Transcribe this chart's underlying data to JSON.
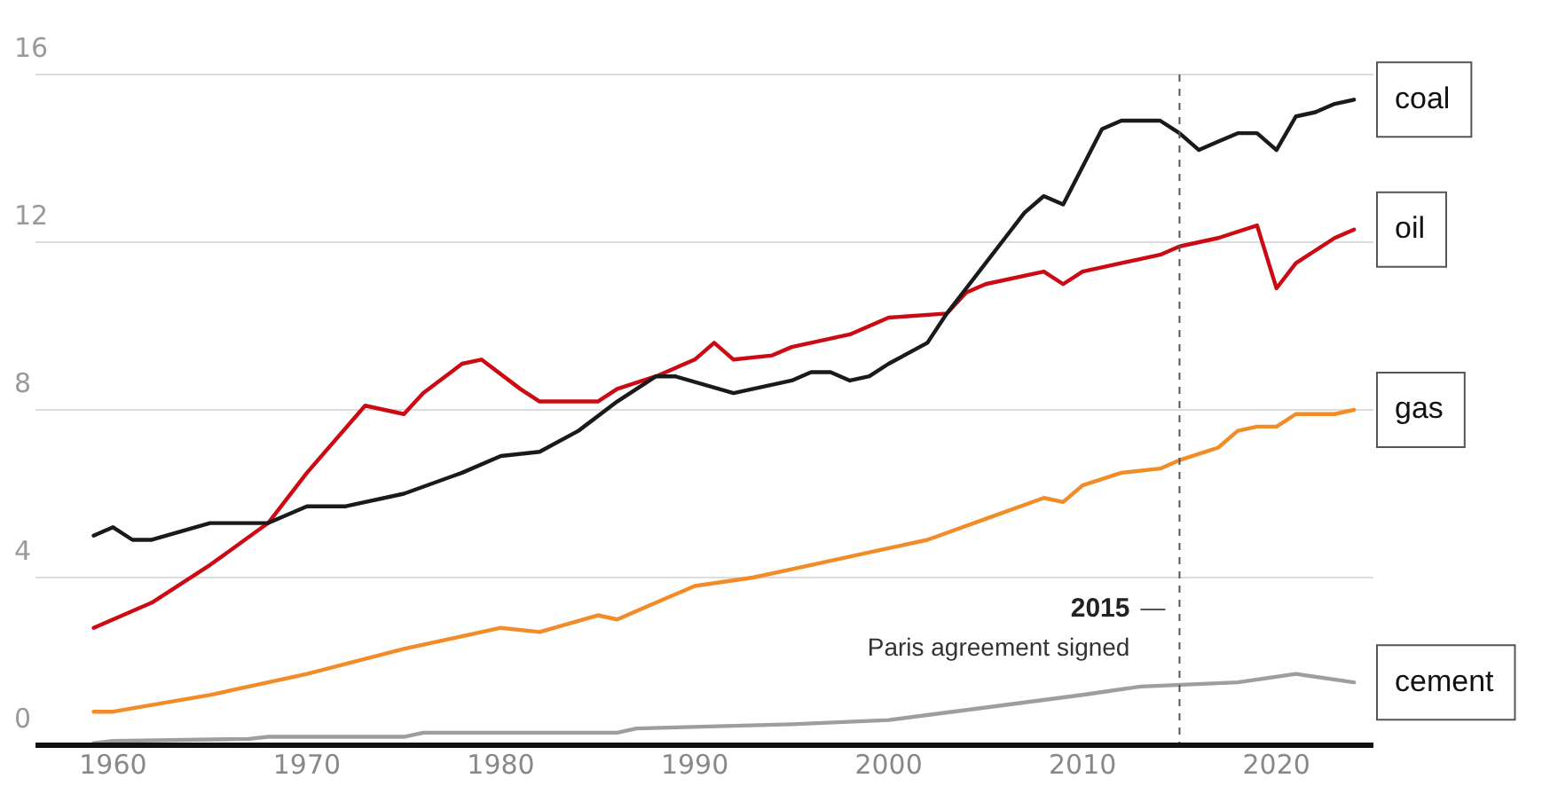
{
  "chart_data": {
    "type": "line",
    "xlim": [
      1956,
      2025
    ],
    "xticks": [
      1960,
      1970,
      1980,
      1990,
      2000,
      2010,
      2020
    ],
    "ylim": [
      0,
      16
    ],
    "yticks": [
      0,
      4,
      8,
      12,
      16
    ],
    "grid": "y",
    "legend": false,
    "marker": "none",
    "line_style": "solid",
    "series": [
      {
        "name": "coal",
        "color": "#1a1a1a",
        "x": [
          1959,
          1960,
          1961,
          1962,
          1965,
          1968,
          1970,
          1972,
          1975,
          1978,
          1980,
          1982,
          1984,
          1986,
          1988,
          1989,
          1992,
          1995,
          1996,
          1997,
          1998,
          1999,
          2000,
          2002,
          2003,
          2004,
          2005,
          2006,
          2007,
          2008,
          2009,
          2010,
          2011,
          2012,
          2013,
          2014,
          2015,
          2016,
          2017,
          2018,
          2019,
          2020,
          2021,
          2022,
          2023,
          2024
        ],
        "values": [
          5.0,
          5.2,
          4.9,
          4.9,
          5.3,
          5.3,
          5.7,
          5.7,
          6.0,
          6.5,
          6.9,
          7.0,
          7.5,
          8.2,
          8.8,
          8.8,
          8.4,
          8.7,
          8.9,
          8.9,
          8.7,
          8.8,
          9.1,
          9.6,
          10.3,
          10.9,
          11.5,
          12.1,
          12.7,
          13.1,
          12.9,
          13.8,
          14.7,
          14.9,
          14.9,
          14.9,
          14.6,
          14.2,
          14.4,
          14.6,
          14.6,
          14.2,
          15.0,
          15.1,
          15.3,
          15.4
        ]
      },
      {
        "name": "oil",
        "color": "#cc0a14",
        "x": [
          1959,
          1962,
          1965,
          1968,
          1970,
          1973,
          1974,
          1975,
          1976,
          1978,
          1979,
          1981,
          1982,
          1985,
          1986,
          1988,
          1990,
          1991,
          1992,
          1994,
          1995,
          1998,
          2000,
          2003,
          2004,
          2005,
          2008,
          2009,
          2010,
          2013,
          2014,
          2015,
          2017,
          2019,
          2020,
          2021,
          2023,
          2024
        ],
        "values": [
          2.8,
          3.4,
          4.3,
          5.3,
          6.5,
          8.1,
          8.0,
          7.9,
          8.4,
          9.1,
          9.2,
          8.5,
          8.2,
          8.2,
          8.5,
          8.8,
          9.2,
          9.6,
          9.2,
          9.3,
          9.5,
          9.8,
          10.2,
          10.3,
          10.8,
          11.0,
          11.3,
          11.0,
          11.3,
          11.6,
          11.7,
          11.9,
          12.1,
          12.4,
          10.9,
          11.5,
          12.1,
          12.3
        ]
      },
      {
        "name": "gas",
        "color": "#f28c28",
        "x": [
          1959,
          1960,
          1965,
          1970,
          1975,
          1980,
          1982,
          1985,
          1986,
          1988,
          1990,
          1993,
          1995,
          2000,
          2002,
          2005,
          2008,
          2009,
          2010,
          2012,
          2014,
          2015,
          2017,
          2018,
          2019,
          2020,
          2021,
          2023,
          2024
        ],
        "values": [
          0.8,
          0.8,
          1.2,
          1.7,
          2.3,
          2.8,
          2.7,
          3.1,
          3.0,
          3.4,
          3.8,
          4.0,
          4.2,
          4.7,
          4.9,
          5.4,
          5.9,
          5.8,
          6.2,
          6.5,
          6.6,
          6.8,
          7.1,
          7.5,
          7.6,
          7.6,
          7.9,
          7.9,
          8.0
        ]
      },
      {
        "name": "cement",
        "color": "#9e9e9e",
        "x": [
          1959,
          1960,
          1967,
          1968,
          1975,
          1976,
          1986,
          1987,
          1995,
          2000,
          2005,
          2010,
          2013,
          2018,
          2021,
          2024
        ],
        "values": [
          0.05,
          0.1,
          0.15,
          0.2,
          0.2,
          0.3,
          0.3,
          0.4,
          0.5,
          0.6,
          0.9,
          1.2,
          1.4,
          1.5,
          1.7,
          1.5
        ]
      }
    ],
    "ref_lines": [
      {
        "axis": "x",
        "value": 2015,
        "label": "2015",
        "color": "#555555",
        "line_style": "dashed"
      }
    ],
    "annotations": [
      "Paris agreement signed"
    ]
  }
}
